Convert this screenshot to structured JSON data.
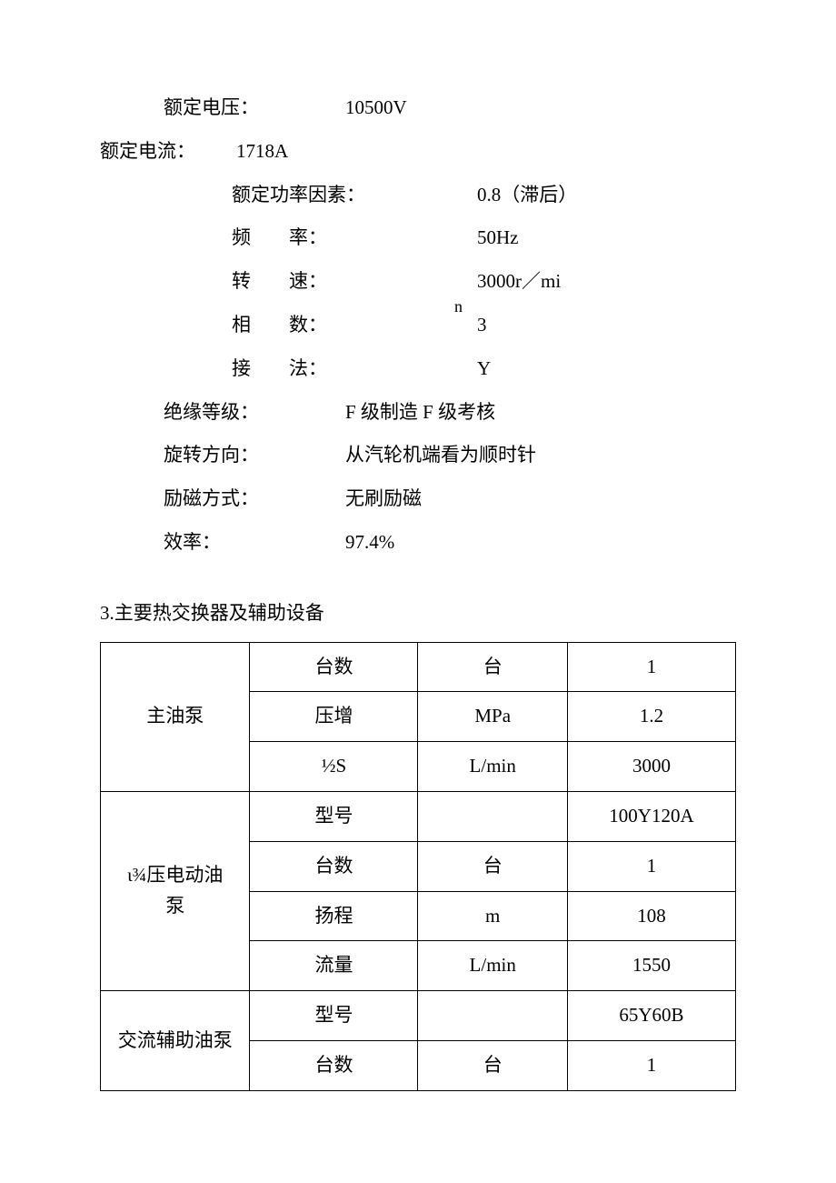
{
  "specs": {
    "voltage": {
      "label": "额定电压：",
      "value": "10500V"
    },
    "current": {
      "label": "额定电流：",
      "value": "1718A"
    },
    "power_factor": {
      "label": "额定功率因素：",
      "value": "0.8（滞后）"
    },
    "frequency": {
      "label": "频　　率：",
      "value": "50Hz"
    },
    "speed": {
      "label": "转　　速：",
      "value": "3000r／mi",
      "extra": "n"
    },
    "phase": {
      "label": "相　　数：",
      "value": "3"
    },
    "connection": {
      "label": "接　　法：",
      "value": "Y"
    },
    "insulation": {
      "label": "绝缘等级：",
      "value": "F 级制造 F 级考核"
    },
    "rotation": {
      "label": "旋转方向：",
      "value": "从汽轮机端看为顺时针"
    },
    "excitation": {
      "label": "励磁方式：",
      "value": "无刷励磁"
    },
    "efficiency": {
      "label": "效率：",
      "value": "97.4%"
    }
  },
  "section2_title": "3.主要热交换器及辅助设备",
  "table": {
    "rows": [
      {
        "group": "主油泵",
        "param": "台数",
        "unit": "台",
        "val": "1"
      },
      {
        "group": "",
        "param": "压增",
        "unit": "MPa",
        "val": "1.2"
      },
      {
        "group": "",
        "param": "½S",
        "unit": "L/min",
        "val": "3000"
      },
      {
        "group": "ι¾压电动油泵",
        "param": "型号",
        "unit": "",
        "val": "100Y120A"
      },
      {
        "group": "",
        "param": "台数",
        "unit": "台",
        "val": "1"
      },
      {
        "group": "",
        "param": "扬程",
        "unit": "m",
        "val": "108"
      },
      {
        "group": "",
        "param": "流量",
        "unit": "L/min",
        "val": "1550"
      },
      {
        "group": "交流辅助油泵",
        "param": "型号",
        "unit": "",
        "val": "65Y60B"
      },
      {
        "group": "",
        "param": "台数",
        "unit": "台",
        "val": "1"
      }
    ],
    "group_spans": [
      3,
      4,
      2
    ],
    "group_labels": [
      "主油泵",
      "ι¾压电动油\n泵",
      "交流辅助油泵"
    ],
    "columns": [
      "col-group",
      "col-param",
      "col-unit",
      "col-val"
    ],
    "border_color": "#000000",
    "background": "#ffffff"
  },
  "colors": {
    "text": "#000000",
    "background": "#ffffff",
    "border": "#000000"
  },
  "typography": {
    "body_fontsize": 21,
    "font_family": "SimSun"
  }
}
